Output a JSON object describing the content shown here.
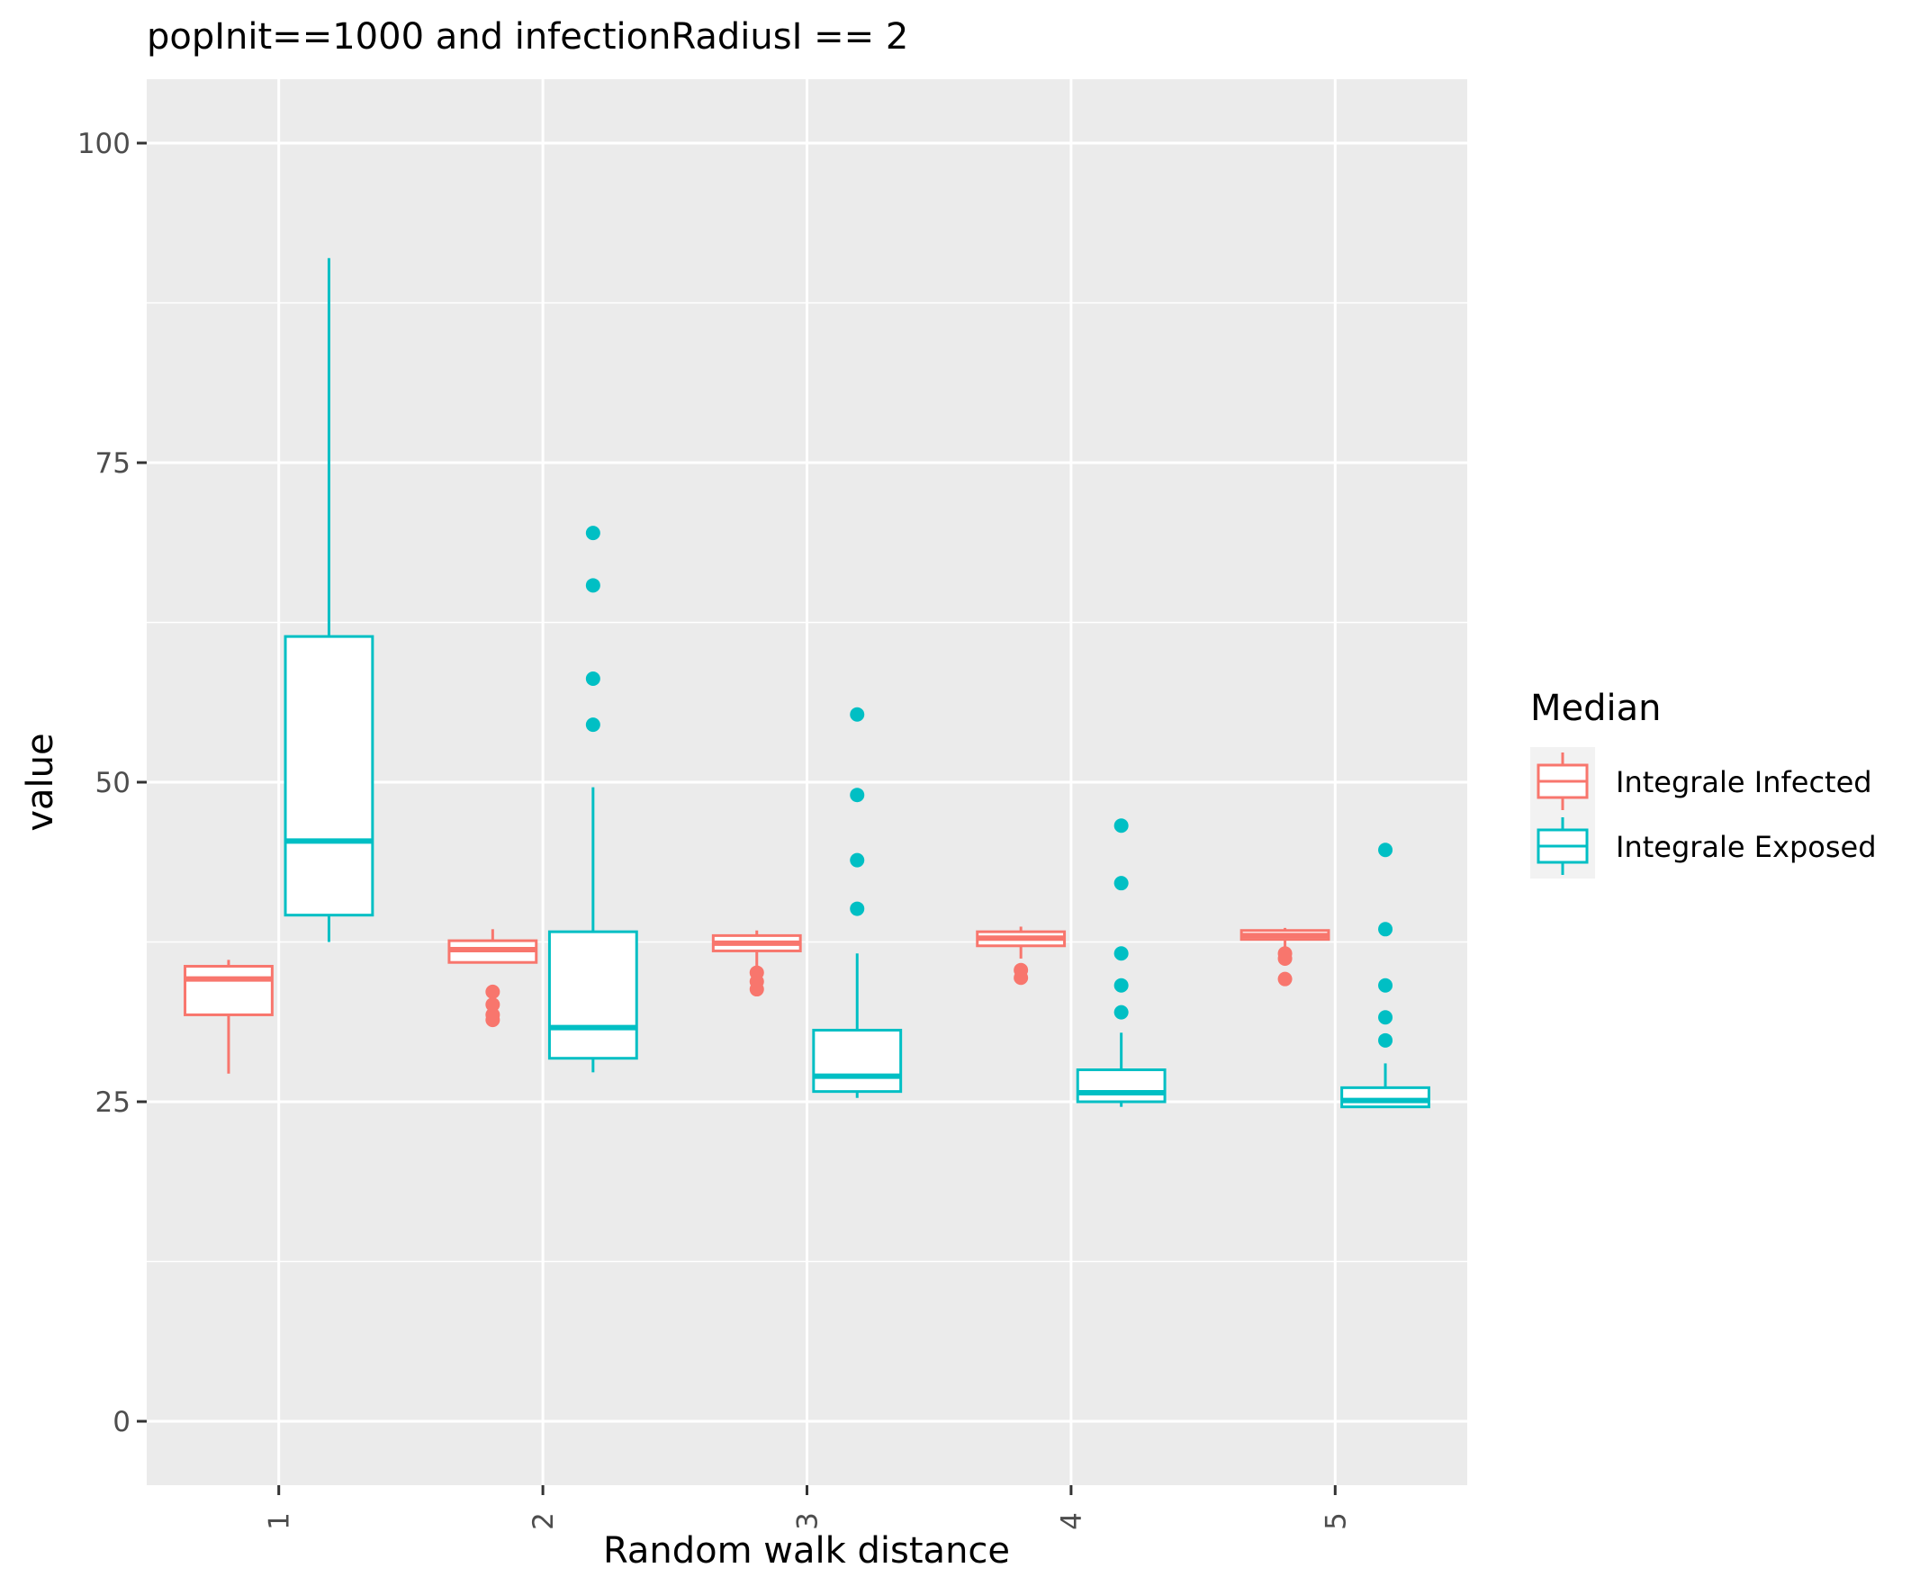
{
  "chart_data": {
    "type": "boxplot",
    "title": "popInit==1000 and infectionRadiusI == 2",
    "xlabel": "Random walk distance",
    "ylabel": "value",
    "categories": [
      "1",
      "2",
      "3",
      "4",
      "5"
    ],
    "ylim": [
      -5,
      105
    ],
    "yticks": [
      0,
      25,
      50,
      75,
      100
    ],
    "ytick_labels": [
      "0",
      "25",
      "50",
      "75",
      "100"
    ],
    "legend": {
      "title": "Median",
      "position": "right",
      "entries": [
        "Integrale Infected",
        "Integrale Exposed"
      ]
    },
    "series": [
      {
        "name": "Integrale Infected",
        "color": "#F8766D",
        "boxes": [
          {
            "category": "1",
            "whisker_low": 27.2,
            "q1": 31.8,
            "median": 34.6,
            "q3": 35.6,
            "whisker_high": 36.1,
            "outliers": []
          },
          {
            "category": "2",
            "whisker_low": 35.9,
            "q1": 35.9,
            "median": 36.9,
            "q3": 37.6,
            "whisker_high": 38.5,
            "outliers": [
              31.4,
              31.8,
              32.6,
              33.6
            ]
          },
          {
            "category": "3",
            "whisker_low": 35.6,
            "q1": 36.8,
            "median": 37.4,
            "q3": 38.0,
            "whisker_high": 38.4,
            "outliers": [
              33.8,
              34.4,
              35.1
            ]
          },
          {
            "category": "4",
            "whisker_low": 36.2,
            "q1": 37.2,
            "median": 37.8,
            "q3": 38.3,
            "whisker_high": 38.7,
            "outliers": [
              34.7,
              35.3
            ]
          },
          {
            "category": "5",
            "whisker_low": 37.1,
            "q1": 37.7,
            "median": 38.0,
            "q3": 38.4,
            "whisker_high": 38.6,
            "outliers": [
              34.6,
              36.2,
              36.6
            ]
          }
        ]
      },
      {
        "name": "Integrale Exposed",
        "color": "#00BFC4",
        "boxes": [
          {
            "category": "1",
            "whisker_low": 37.5,
            "q1": 39.6,
            "median": 45.4,
            "q3": 61.4,
            "whisker_high": 91.0,
            "outliers": []
          },
          {
            "category": "2",
            "whisker_low": 27.3,
            "q1": 28.4,
            "median": 30.8,
            "q3": 38.3,
            "whisker_high": 49.6,
            "outliers": [
              54.5,
              58.1,
              65.4,
              69.5
            ]
          },
          {
            "category": "3",
            "whisker_low": 25.3,
            "q1": 25.8,
            "median": 27.0,
            "q3": 30.6,
            "whisker_high": 36.6,
            "outliers": [
              40.1,
              43.9,
              49.0,
              55.3
            ]
          },
          {
            "category": "4",
            "whisker_low": 24.6,
            "q1": 25.0,
            "median": 25.7,
            "q3": 27.5,
            "whisker_high": 30.4,
            "outliers": [
              32.0,
              34.1,
              36.6,
              42.1,
              46.6
            ]
          },
          {
            "category": "5",
            "whisker_low": 24.6,
            "q1": 24.6,
            "median": 25.1,
            "q3": 26.1,
            "whisker_high": 28.0,
            "outliers": [
              29.8,
              31.6,
              34.1,
              38.5,
              44.7
            ]
          }
        ]
      }
    ]
  }
}
